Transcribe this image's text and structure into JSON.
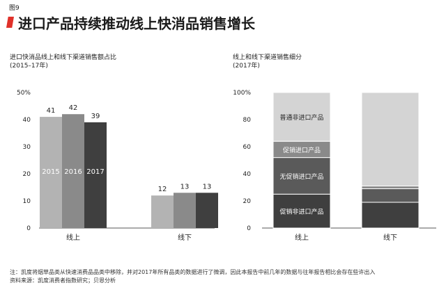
{
  "figure_label": "图9",
  "title": "进口产品持续推动线上快消品销售增长",
  "footnote": "注：凯度将烟草品类从快速消费品品类中移除，并对2017年所有品类的数据进行了微调，因此本报告中前几年的数据与往年报告相比会存在些许出入",
  "source": "资料来源：凯度消费者指数研究；贝恩分析",
  "chart_data": [
    {
      "type": "bar",
      "title": "进口快消品线上和线下渠道销售额占比",
      "subtitle": "(2015–17年)",
      "categories": [
        "线上",
        "线下"
      ],
      "series": [
        {
          "name": "2015",
          "values": [
            41,
            12
          ],
          "color": "#b3b3b3"
        },
        {
          "name": "2016",
          "values": [
            42,
            13
          ],
          "color": "#8a8a8a"
        },
        {
          "name": "2017",
          "values": [
            39,
            13
          ],
          "color": "#3f3f3f"
        }
      ],
      "y_ticks": [
        "50%",
        "40",
        "30",
        "20",
        "10",
        "0"
      ],
      "ylim": [
        0,
        50
      ],
      "grid": false
    },
    {
      "type": "bar",
      "stacked": true,
      "title": "线上和线下渠道销售细分",
      "subtitle": "(2017年)",
      "categories": [
        "线上",
        "线下"
      ],
      "series": [
        {
          "name": "促销非进口产品",
          "values": [
            25,
            19
          ],
          "color": "#3f3f3f"
        },
        {
          "name": "无促销进口产品",
          "values": [
            27,
            10
          ],
          "color": "#5a5a5a"
        },
        {
          "name": "促销进口产品",
          "values": [
            12,
            2
          ],
          "color": "#8a8a8a"
        },
        {
          "name": "普通非进口产品",
          "values": [
            36,
            69
          ],
          "color": "#d4d4d4"
        }
      ],
      "y_ticks": [
        "100%",
        "80",
        "60",
        "40",
        "20",
        "0"
      ],
      "ylim": [
        0,
        100
      ],
      "grid": false
    }
  ]
}
